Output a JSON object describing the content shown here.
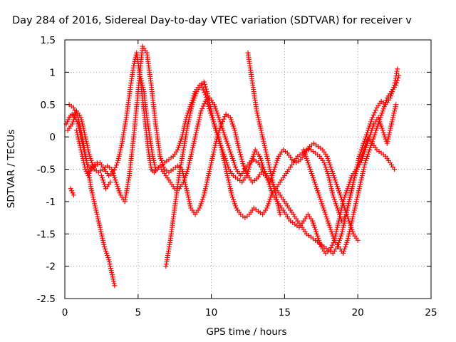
{
  "chart_data": {
    "type": "scatter",
    "title": "Day 284 of 2016, Sidereal Day-to-day VTEC variation (SDTVAR) for receiver v",
    "xlabel": "GPS time / hours",
    "ylabel": "SDTVAR / TECUs",
    "xlim": [
      0,
      25
    ],
    "ylim": [
      -2.5,
      1.5
    ],
    "x_ticks": [
      "0",
      "5",
      "10",
      "15",
      "20",
      "25"
    ],
    "y_ticks": [
      "-2.5",
      "-2",
      "-1.5",
      "-1",
      "-0.5",
      "0",
      "0.5",
      "1",
      "1.5"
    ],
    "grid": true,
    "marker": "+",
    "color": "#ff0000",
    "series": [
      {
        "x": [
          0.1,
          0.3,
          0.5,
          0.7,
          0.9,
          1.1,
          1.3,
          1.5,
          1.8,
          2.1,
          2.4,
          2.7,
          3.0,
          3.3,
          3.6,
          3.9,
          4.2,
          4.5,
          4.7,
          4.9,
          5.1,
          5.3,
          5.5,
          5.7,
          5.9,
          6.1,
          6.3,
          6.5,
          6.8,
          7.1,
          7.4,
          7.7,
          8.0,
          8.3,
          8.6,
          8.9,
          9.2,
          9.5,
          9.7,
          9.9,
          10.1,
          10.3,
          10.6,
          10.9,
          11.2,
          11.5,
          11.8,
          12.1,
          12.4,
          12.7,
          13.0,
          13.3,
          13.6,
          13.9,
          14.2,
          14.5,
          14.8,
          15.1,
          15.4,
          15.7,
          16.0,
          16.3,
          16.6,
          16.9,
          17.2,
          17.5,
          17.8,
          18.1,
          18.4,
          18.7,
          19.0,
          19.3,
          19.6,
          19.9,
          20.2,
          20.5,
          20.8,
          21.1,
          21.4,
          21.7,
          22.0,
          22.3,
          22.6
        ],
        "y": [
          0.2,
          0.3,
          0.35,
          0.3,
          0.2,
          0.0,
          -0.2,
          -0.4,
          -0.5,
          -0.45,
          -0.4,
          -0.5,
          -0.6,
          -0.55,
          -0.4,
          -0.1,
          0.3,
          0.8,
          1.1,
          1.3,
          1.0,
          0.6,
          0.2,
          -0.2,
          -0.5,
          -0.55,
          -0.5,
          -0.45,
          -0.4,
          -0.35,
          -0.3,
          -0.2,
          0.0,
          0.3,
          0.5,
          0.7,
          0.8,
          0.85,
          0.7,
          0.5,
          0.3,
          0.1,
          -0.1,
          -0.3,
          -0.5,
          -0.6,
          -0.65,
          -0.7,
          -0.6,
          -0.4,
          -0.2,
          -0.3,
          -0.5,
          -0.7,
          -0.9,
          -1.0,
          -1.1,
          -1.2,
          -1.3,
          -1.35,
          -1.4,
          -1.3,
          -1.2,
          -1.3,
          -1.5,
          -1.7,
          -1.8,
          -1.75,
          -1.6,
          -1.3,
          -1.0,
          -0.8,
          -0.6,
          -0.5,
          -0.4,
          -0.2,
          0.0,
          0.2,
          0.3,
          0.1,
          -0.1,
          0.2,
          0.5
        ]
      },
      {
        "x": [
          0.2,
          0.5,
          0.8,
          1.1,
          1.4,
          1.7,
          2.0,
          2.3,
          2.6,
          2.9,
          3.2,
          3.5,
          3.8,
          4.1,
          4.4,
          4.7,
          5.0,
          5.3,
          5.6,
          5.9,
          6.2,
          6.5,
          6.8,
          7.1,
          7.4,
          7.7,
          8.0,
          8.3,
          8.6,
          8.9,
          9.2,
          9.5,
          9.8,
          10.1,
          10.4,
          10.7,
          11.0,
          11.3,
          11.6,
          11.9,
          12.2,
          12.5,
          12.8,
          13.1,
          13.4,
          13.7,
          14.0,
          14.3,
          14.6,
          14.9,
          15.2,
          15.5,
          15.8,
          16.1,
          16.4,
          16.7,
          17.0,
          17.3,
          17.6,
          17.9,
          18.2,
          18.5,
          18.8,
          19.1,
          19.4,
          19.7,
          20.0
        ],
        "y": [
          0.1,
          0.2,
          0.4,
          0.3,
          0.0,
          -0.3,
          -0.5,
          -0.55,
          -0.5,
          -0.45,
          -0.5,
          -0.7,
          -0.9,
          -1.0,
          -0.6,
          0.0,
          0.7,
          1.4,
          1.3,
          0.8,
          0.2,
          -0.3,
          -0.5,
          -0.55,
          -0.5,
          -0.45,
          -0.5,
          -0.8,
          -1.1,
          -1.2,
          -1.1,
          -0.9,
          -0.6,
          -0.3,
          0.0,
          0.2,
          0.35,
          0.3,
          0.1,
          -0.2,
          -0.45,
          -0.6,
          -0.7,
          -0.65,
          -0.55,
          -0.6,
          -0.7,
          -0.5,
          -0.3,
          -0.2,
          -0.25,
          -0.35,
          -0.4,
          -0.35,
          -0.25,
          -0.15,
          -0.1,
          -0.15,
          -0.2,
          -0.3,
          -0.5,
          -0.7,
          -0.9,
          -1.1,
          -1.3,
          -1.5,
          -1.6
        ]
      },
      {
        "x": [
          0.3,
          0.6,
          0.9,
          1.2,
          1.5,
          1.8,
          2.1,
          2.4,
          2.7,
          3.0,
          3.2,
          3.4,
          6.9,
          7.2,
          7.5,
          7.8,
          8.1,
          8.4,
          8.7,
          9.0,
          9.3,
          9.6,
          9.9,
          10.2,
          10.5,
          10.8,
          11.1,
          11.4,
          11.7,
          12.0,
          12.3,
          12.6,
          12.9,
          13.2,
          13.5,
          13.8,
          14.1,
          14.4,
          14.7,
          15.0,
          15.3,
          15.6,
          15.9,
          16.2,
          16.5,
          16.8,
          17.1,
          17.4,
          17.7,
          18.0,
          18.3,
          18.6,
          18.9,
          19.2,
          19.5,
          19.8,
          20.1,
          20.4,
          20.7,
          21.0,
          21.3,
          21.6,
          21.9,
          22.2,
          22.5,
          22.7
        ],
        "y": [
          0.5,
          0.45,
          0.3,
          0.0,
          -0.4,
          -0.8,
          -1.1,
          -1.4,
          -1.7,
          -1.9,
          -2.1,
          -2.3,
          -2.0,
          -1.6,
          -1.1,
          -0.6,
          -0.2,
          0.2,
          0.5,
          0.7,
          0.8,
          0.65,
          0.4,
          0.2,
          0.0,
          -0.3,
          -0.6,
          -0.9,
          -1.1,
          -1.2,
          -1.25,
          -1.2,
          -1.1,
          -1.15,
          -1.2,
          -1.1,
          -0.9,
          -0.8,
          -0.7,
          -0.6,
          -0.5,
          -0.4,
          -0.3,
          -0.25,
          -0.2,
          -0.2,
          -0.25,
          -0.3,
          -0.4,
          -0.6,
          -0.9,
          -1.1,
          -1.3,
          -1.2,
          -0.9,
          -0.6,
          -0.3,
          -0.1,
          0.1,
          0.3,
          0.45,
          0.55,
          0.5,
          0.6,
          0.8,
          1.05
        ]
      },
      {
        "x": [
          0.4,
          0.6,
          2.5,
          2.8,
          3.1,
          6.6,
          6.9,
          7.2,
          7.5,
          7.8,
          8.1,
          8.4,
          8.7,
          9.0,
          9.3,
          9.6,
          9.9,
          10.2,
          10.5,
          10.8,
          11.1,
          11.4,
          11.7,
          12.0,
          12.3,
          12.6,
          12.9,
          13.2,
          13.5,
          13.8,
          14.1,
          14.4,
          14.7,
          15.0,
          15.3,
          15.6,
          15.9,
          16.2,
          16.5,
          16.8,
          17.1,
          17.4,
          17.7,
          18.0,
          18.3,
          18.6,
          18.9,
          19.2,
          19.5,
          19.8,
          20.1,
          20.4,
          20.7,
          21.0,
          21.3,
          21.6,
          21.9,
          22.2,
          22.5
        ],
        "y": [
          -0.8,
          -0.9,
          -0.6,
          -0.8,
          -0.7,
          -0.5,
          -0.6,
          -0.7,
          -0.8,
          -0.8,
          -0.7,
          -0.5,
          -0.2,
          0.1,
          0.4,
          0.55,
          0.6,
          0.5,
          0.3,
          0.1,
          -0.1,
          -0.3,
          -0.5,
          -0.6,
          -0.5,
          -0.4,
          -0.35,
          -0.4,
          -0.5,
          -0.6,
          -0.7,
          -0.8,
          -0.9,
          -1.0,
          -1.1,
          -1.2,
          -1.3,
          -1.4,
          -1.5,
          -1.55,
          -1.6,
          -1.65,
          -1.7,
          -1.75,
          -1.8,
          -1.7,
          -1.5,
          -1.2,
          -0.9,
          -0.6,
          -0.4,
          -0.2,
          0.0,
          -0.1,
          -0.2,
          -0.25,
          -0.3,
          -0.4,
          -0.5
        ]
      },
      {
        "x": [
          0.8,
          1.0,
          1.2,
          1.4,
          1.6,
          1.9,
          2.2,
          5.2,
          5.4,
          5.6,
          5.8,
          6.0,
          6.2,
          12.5,
          12.7,
          12.9,
          13.1,
          13.3,
          13.5,
          13.7,
          13.9,
          14.1,
          14.3,
          14.5,
          14.7,
          16.3,
          16.6,
          16.9,
          17.2,
          17.5,
          17.8,
          18.1,
          18.4,
          18.7,
          19.0,
          19.3,
          19.6,
          19.9,
          20.2,
          20.5,
          20.8,
          21.1,
          21.4,
          21.7,
          22.0,
          22.3,
          22.6,
          22.8
        ],
        "y": [
          0.1,
          -0.1,
          -0.3,
          -0.5,
          -0.6,
          -0.45,
          -0.4,
          0.9,
          0.7,
          0.3,
          0.0,
          -0.3,
          -0.5,
          1.3,
          1.0,
          0.7,
          0.4,
          0.2,
          0.0,
          -0.2,
          -0.4,
          -0.6,
          -0.8,
          -1.0,
          -1.2,
          -0.2,
          -0.4,
          -0.6,
          -0.8,
          -1.0,
          -1.2,
          -1.4,
          -1.6,
          -1.7,
          -1.8,
          -1.6,
          -1.3,
          -1.0,
          -0.7,
          -0.4,
          -0.2,
          0.0,
          0.2,
          0.4,
          0.6,
          0.7,
          0.8,
          0.95
        ]
      }
    ]
  }
}
